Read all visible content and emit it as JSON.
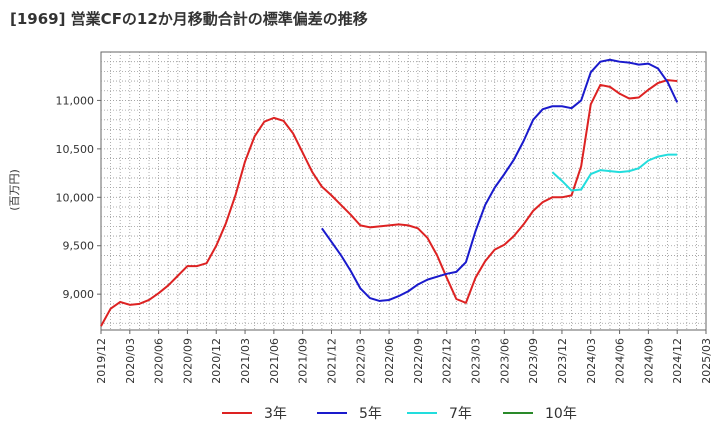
{
  "title": "[1969]  営業CFの12か月移動合計の標準偏差の推移",
  "chart_data": {
    "type": "line",
    "title": "[1969]  営業CFの12か月移動合計の標準偏差の推移",
    "ylabel": "(百万円)",
    "xlabel": "",
    "ylim": [
      8630,
      11500
    ],
    "yticks": [
      9000,
      9500,
      10000,
      10500,
      11000
    ],
    "ytick_labels": [
      "9,000",
      "9,500",
      "10,000",
      "10,500",
      "11,000"
    ],
    "xticks": [
      "2019/12",
      "2020/03",
      "2020/06",
      "2020/09",
      "2020/12",
      "2021/03",
      "2021/06",
      "2021/09",
      "2021/12",
      "2022/03",
      "2022/06",
      "2022/09",
      "2022/12",
      "2023/03",
      "2023/06",
      "2023/09",
      "2023/12",
      "2024/03",
      "2024/06",
      "2024/09",
      "2024/12",
      "2025/03"
    ],
    "grid": true,
    "legend_position": "bottom",
    "series": [
      {
        "name": "3年",
        "color": "#dd2222",
        "start": "2019/12",
        "values": [
          8670,
          8850,
          8920,
          8890,
          8900,
          8940,
          9010,
          9090,
          9190,
          9290,
          9290,
          9320,
          9500,
          9730,
          10020,
          10370,
          10630,
          10780,
          10820,
          10790,
          10660,
          10460,
          10260,
          10110,
          10020,
          9920,
          9820,
          9710,
          9690,
          9700,
          9710,
          9720,
          9710,
          9680,
          9580,
          9400,
          9170,
          8950,
          8910,
          9170,
          9340,
          9460,
          9510,
          9600,
          9720,
          9860,
          9950,
          10000,
          10000,
          10020,
          10320,
          10960,
          11160,
          11140,
          11070,
          11020,
          11030,
          11110,
          11180,
          11210,
          11200
        ]
      },
      {
        "name": "5年",
        "color": "#1a1acc",
        "start": "2021/11",
        "values": [
          9680,
          9540,
          9400,
          9240,
          9060,
          8960,
          8930,
          8940,
          8980,
          9030,
          9100,
          9150,
          9180,
          9210,
          9230,
          9330,
          9650,
          9920,
          10100,
          10240,
          10390,
          10580,
          10800,
          10910,
          10940,
          10940,
          10920,
          11000,
          11290,
          11400,
          11420,
          11400,
          11390,
          11370,
          11380,
          11330,
          11190,
          10980
        ]
      },
      {
        "name": "7年",
        "color": "#22dddd",
        "start": "2023/11",
        "values": [
          10260,
          10170,
          10070,
          10080,
          10240,
          10280,
          10270,
          10260,
          10270,
          10300,
          10380,
          10420,
          10440,
          10440
        ]
      },
      {
        "name": "10年",
        "color": "#2a8a2a",
        "start": "2019/12",
        "values": []
      }
    ]
  }
}
